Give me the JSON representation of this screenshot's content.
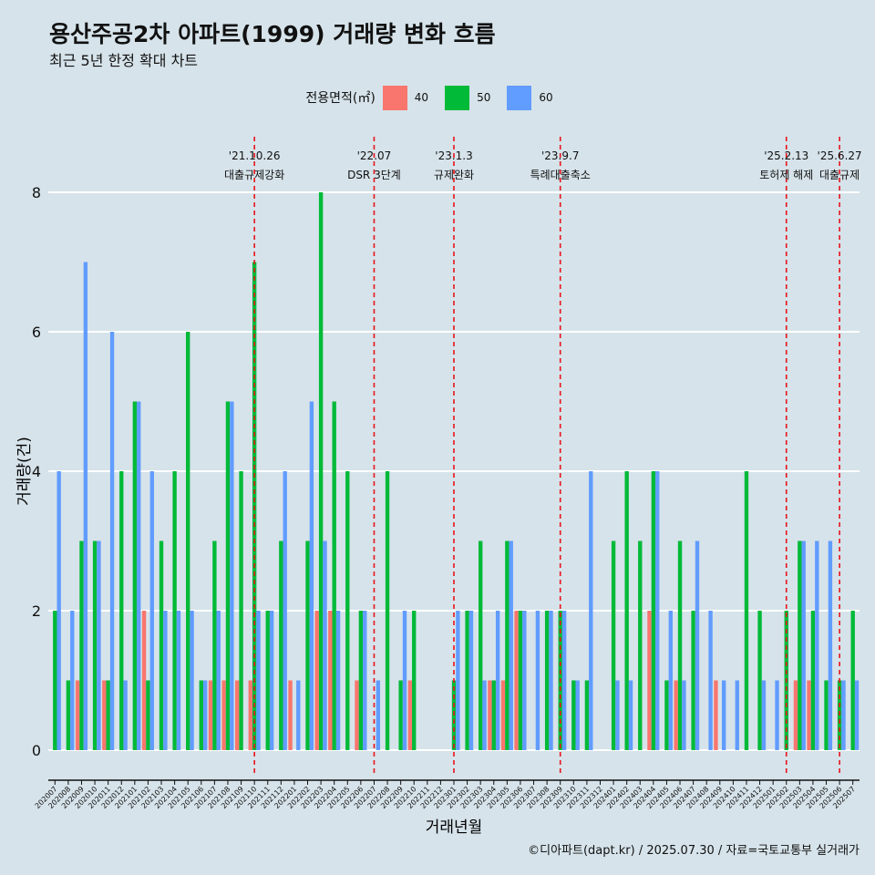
{
  "header": {
    "title": "용산주공2차 아파트(1999) 거래량 변화 흐름",
    "subtitle": "최근 5년 한정 확대 차트"
  },
  "legend": {
    "title": "전용면적(㎡)",
    "items": [
      {
        "label": "40",
        "color": "#f8766d"
      },
      {
        "label": "50",
        "color": "#00ba38"
      },
      {
        "label": "60",
        "color": "#619cff"
      }
    ]
  },
  "caption": "©디아파트(dapt.kr) / 2025.07.30 / 자료=국토교통부 실거래가",
  "chart_data": {
    "type": "bar",
    "xlabel": "거래년월",
    "ylabel": "거래량(건)",
    "ylim": [
      0,
      8
    ],
    "yticks": [
      0,
      2,
      4,
      6,
      8
    ],
    "grid": true,
    "legend_position": "top",
    "categories": [
      "202007",
      "202008",
      "202009",
      "202010",
      "202011",
      "202012",
      "202101",
      "202102",
      "202103",
      "202104",
      "202105",
      "202106",
      "202107",
      "202108",
      "202109",
      "202110",
      "202111",
      "202112",
      "202201",
      "202202",
      "202203",
      "202204",
      "202205",
      "202206",
      "202207",
      "202208",
      "202209",
      "202210",
      "202211",
      "202212",
      "202301",
      "202302",
      "202303",
      "202304",
      "202305",
      "202306",
      "202307",
      "202308",
      "202309",
      "202310",
      "202311",
      "202312",
      "202401",
      "202402",
      "202403",
      "202404",
      "202405",
      "202406",
      "202407",
      "202408",
      "202409",
      "202410",
      "202411",
      "202412",
      "202501",
      "202502",
      "202503",
      "202504",
      "202505",
      "202506",
      "202507"
    ],
    "series": [
      {
        "name": "40",
        "color": "#f8766d",
        "values": [
          0,
          0,
          1,
          0,
          1,
          0,
          0,
          2,
          0,
          0,
          0,
          0,
          1,
          1,
          1,
          1,
          0,
          0,
          1,
          0,
          2,
          2,
          0,
          1,
          0,
          0,
          0,
          1,
          0,
          0,
          0,
          0,
          0,
          1,
          1,
          2,
          0,
          0,
          0,
          0,
          0,
          0,
          0,
          0,
          0,
          2,
          0,
          1,
          0,
          0,
          1,
          0,
          0,
          0,
          0,
          0,
          1,
          1,
          0,
          0,
          0
        ]
      },
      {
        "name": "50",
        "color": "#00ba38",
        "values": [
          2,
          1,
          3,
          3,
          1,
          4,
          5,
          1,
          3,
          4,
          6,
          1,
          3,
          5,
          4,
          7,
          2,
          3,
          0,
          3,
          8,
          5,
          4,
          2,
          0,
          4,
          1,
          2,
          0,
          0,
          1,
          2,
          3,
          1,
          3,
          2,
          0,
          2,
          2,
          1,
          1,
          0,
          3,
          4,
          3,
          4,
          1,
          3,
          2,
          0,
          0,
          0,
          4,
          2,
          0,
          2,
          3,
          2,
          1,
          1,
          2
        ]
      },
      {
        "name": "60",
        "color": "#619cff",
        "values": [
          4,
          2,
          7,
          3,
          6,
          1,
          5,
          4,
          2,
          2,
          2,
          1,
          2,
          5,
          0,
          2,
          2,
          4,
          1,
          5,
          3,
          2,
          0,
          2,
          1,
          0,
          2,
          0,
          0,
          0,
          2,
          2,
          1,
          2,
          3,
          2,
          2,
          2,
          2,
          1,
          4,
          0,
          1,
          1,
          0,
          4,
          2,
          1,
          3,
          2,
          1,
          1,
          0,
          1,
          1,
          0,
          3,
          3,
          3,
          1,
          1
        ]
      }
    ],
    "annotations": [
      {
        "date": "'21.10.26",
        "label": "대출규제강화",
        "x": "202110"
      },
      {
        "date": "'22.07",
        "label": "DSR 3단계",
        "x": "202207"
      },
      {
        "date": "'23.1.3",
        "label": "규제완화",
        "x": "202301"
      },
      {
        "date": "'23.9.7",
        "label": "특례대출축소",
        "x": "202309"
      },
      {
        "date": "'25.2.13",
        "label": "토허제 해제",
        "x": "202502"
      },
      {
        "date": "'25.6.27",
        "label": "대출규제",
        "x": "202506"
      }
    ]
  }
}
